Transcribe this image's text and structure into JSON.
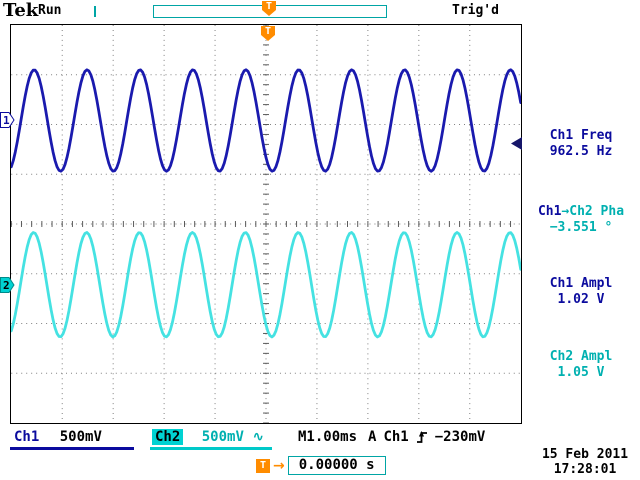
{
  "header": {
    "logo": "Tek",
    "acq_status": "Run",
    "trig_status": "Trig'd",
    "trigger_symbol": "T"
  },
  "left_markers": {
    "ch1": "1",
    "ch2": "2"
  },
  "measurements": [
    {
      "label": "Ch1 Freq",
      "value": "962.5 Hz"
    },
    {
      "label_part1": "Ch1",
      "label_part2": "→Ch2 Pha",
      "value": "−3.551 °"
    },
    {
      "label": "Ch1 Ampl",
      "value": "1.02 V"
    },
    {
      "label": "Ch2 Ampl",
      "value": "1.05 V"
    }
  ],
  "status_bar": {
    "ch1_label": "Ch1",
    "ch1_scale": "500mV",
    "ch2_label": "Ch2",
    "ch2_scale": "500mV",
    "ch2_coupling_symbol": "∿",
    "timebase": "M1.00ms",
    "trigger_source_prefix": "A",
    "trigger_source": "Ch1",
    "trigger_level": "−230mV"
  },
  "footer": {
    "delay_marker": "T",
    "delay_arrow": "→",
    "delay_value": "0.00000 s",
    "date": "15 Feb 2011",
    "time": "17:28:01"
  },
  "colors": {
    "ch1_trace": "#1a1aae",
    "ch2_trace": "#45e2e2",
    "ch1_text": "#0b0b9e",
    "ch2_text": "#00b0b0",
    "trigger_orange": "#ff8c00",
    "record_bar_teal": "#00a5a5"
  },
  "chart_data": {
    "type": "line",
    "title": "Oscilloscope traces Ch1 and Ch2",
    "x_axis": {
      "seconds_per_div": 0.001,
      "divisions": 10,
      "label": "M1.00ms"
    },
    "y_axis": {
      "divisions": 8,
      "units": "V"
    },
    "grid": "dotted, 10x8 divisions, center crosshair ticks every 0.2 div",
    "series": [
      {
        "name": "Ch1",
        "color": "#1a1aae",
        "volts_per_div": 0.5,
        "frequency_hz": 962.5,
        "amplitude_pp_v": 1.02,
        "phase_deg": 0,
        "center_div_from_top": 1.92
      },
      {
        "name": "Ch2",
        "color": "#45e2e2",
        "volts_per_div": 0.5,
        "frequency_hz": 962.5,
        "amplitude_pp_v": 1.05,
        "phase_deg": -3.551,
        "center_div_from_top": 5.22
      }
    ],
    "trigger": {
      "source": "Ch1",
      "level_v": -0.23,
      "slope": "rising"
    }
  }
}
